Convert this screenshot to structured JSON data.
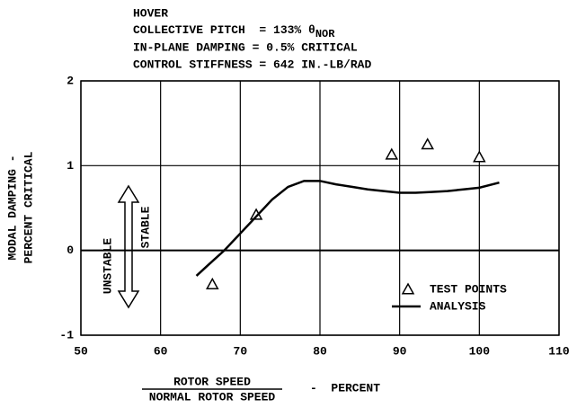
{
  "chart_data": {
    "type": "line",
    "annotations": [
      "HOVER",
      "COLLECTIVE PITCH  = 133% θ",
      "IN-PLANE DAMPING = 0.5% CRITICAL",
      "CONTROL STIFFNESS = 642 IN.-LB/RAD"
    ],
    "annotation_subscript": "NOR",
    "y_label": [
      "MODAL DAMPING -",
      "PERCENT CRITICAL"
    ],
    "x_label": {
      "numerator": "ROTOR SPEED",
      "denominator": "NORMAL ROTOR SPEED",
      "unit": "-  PERCENT"
    },
    "region_labels": {
      "stable": "STABLE",
      "unstable": "UNSTABLE"
    },
    "xlim": [
      50,
      110
    ],
    "xticks": [
      50,
      60,
      70,
      80,
      90,
      100,
      110
    ],
    "ylim": [
      -1,
      2
    ],
    "yticks": [
      -1,
      0,
      1,
      2
    ],
    "grid": true,
    "legend": "lower right",
    "series": [
      {
        "name": "TEST POINTS",
        "style": "triangle",
        "color": "#000000",
        "x": [
          66.5,
          72,
          89,
          93.5,
          100
        ],
        "values": [
          -0.4,
          0.42,
          1.13,
          1.25,
          1.1
        ]
      },
      {
        "name": "ANALYSIS",
        "style": "line",
        "color": "#000000",
        "x": [
          64.5,
          66,
          68,
          70,
          72,
          74,
          76,
          78,
          80,
          82,
          84,
          86,
          88,
          90,
          92,
          94,
          96,
          98,
          100,
          102.5
        ],
        "values": [
          -0.3,
          -0.17,
          0,
          0.2,
          0.4,
          0.6,
          0.75,
          0.82,
          0.82,
          0.78,
          0.75,
          0.72,
          0.7,
          0.68,
          0.68,
          0.69,
          0.7,
          0.72,
          0.74,
          0.8
        ]
      }
    ]
  }
}
